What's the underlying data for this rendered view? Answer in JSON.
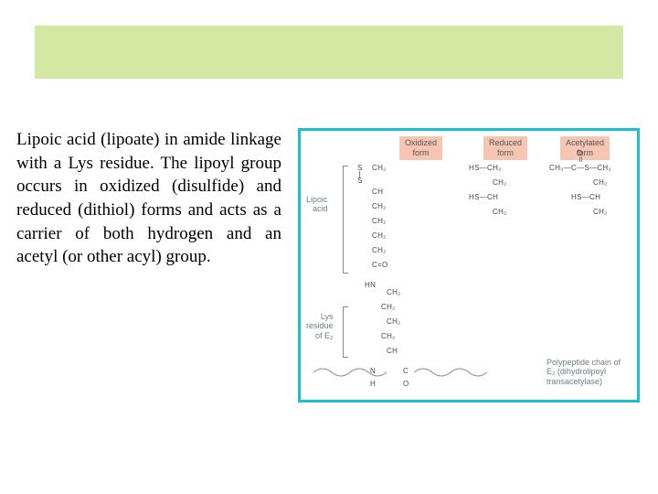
{
  "header": {
    "bg": "#d3e8a3"
  },
  "paragraph": "Lipoic acid (lipoate) in amide linkage with a Lys residue. The lipoyl group occurs in oxidized (disulfide) and reduced (dithiol) forms and acts as a carrier of both hydrogen and an acetyl (or other acyl) group.",
  "figure": {
    "border_color": "#1dbfcf",
    "header_bg": "#f6c6b3",
    "headers": {
      "oxidized": "Oxidized\nform",
      "reduced": "Reduced\nform",
      "acetylated": "Acetylated\nform"
    },
    "side_labels": {
      "lipoic": "Lipoic\nacid",
      "lys": "Lys\nresidue\nof E₂"
    },
    "poly_caption": "Polypeptide chain of\nE₂ (dihydrolipoyl\ntransacetylase)",
    "oxidized_chain": [
      "S",
      "S",
      "CH₂",
      "CH",
      "CH₂",
      "CH₂",
      "CH₂",
      "CH₂",
      "C=O"
    ],
    "reduced_chain": [
      "HS—CH₂",
      "CH₂",
      "HS—CH",
      "CH₂"
    ],
    "acetyl_top": "O",
    "acetyl_line": "CH₃—C—S—CH₂",
    "acetyl_chain": [
      "CH₂",
      "HS—CH",
      "CH₂"
    ],
    "amide": [
      "HN",
      "CH₂",
      "CH₂",
      "CH₂",
      "CH₂",
      "CH"
    ],
    "bottom_frag": [
      "N",
      "H",
      "C",
      "O"
    ]
  }
}
